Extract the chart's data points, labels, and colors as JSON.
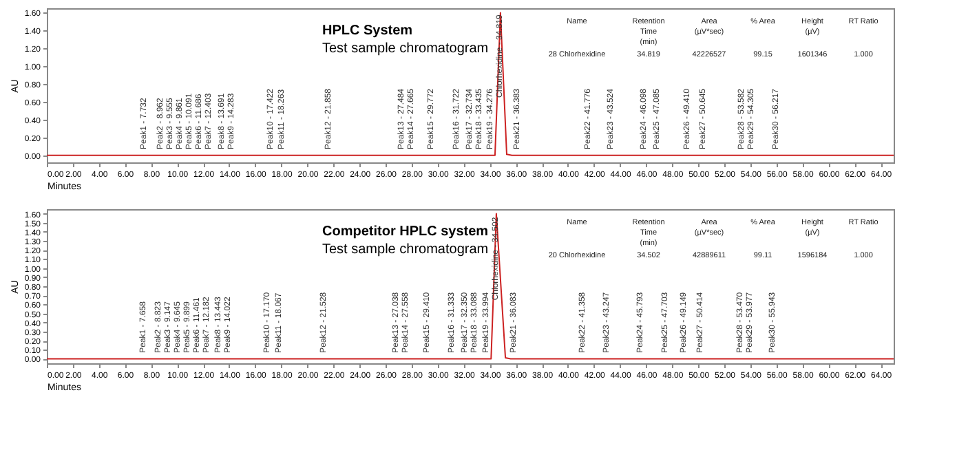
{
  "chart_data": [
    {
      "type": "line",
      "title": "HPLC System",
      "subtitle": "Test sample chromatogram",
      "xlabel": "Minutes",
      "ylabel": "AU",
      "grid": false,
      "series": [
        {
          "color": "#cc2222",
          "x": [
            0,
            34.4,
            34.819,
            35.3,
            35.7,
            65
          ],
          "values": [
            0,
            0,
            1.6,
            0.01,
            0,
            0
          ]
        }
      ],
      "xlim": [
        0,
        65
      ],
      "ylim": [
        -0.08,
        1.65
      ],
      "xticks": [
        {
          "value": 0,
          "label": "0.00"
        },
        {
          "value": 2,
          "label": "2.00"
        },
        {
          "value": 4,
          "label": "4.00"
        },
        {
          "value": 6,
          "label": "6.00"
        },
        {
          "value": 8,
          "label": "8.00"
        },
        {
          "value": 10,
          "label": "10.00"
        },
        {
          "value": 12,
          "label": "12.00"
        },
        {
          "value": 14,
          "label": "14.00"
        },
        {
          "value": 16,
          "label": "16.00"
        },
        {
          "value": 18,
          "label": "18.00"
        },
        {
          "value": 20,
          "label": "20.00"
        },
        {
          "value": 22,
          "label": "22.00"
        },
        {
          "value": 24,
          "label": "24.00"
        },
        {
          "value": 26,
          "label": "26.00"
        },
        {
          "value": 28,
          "label": "28.00"
        },
        {
          "value": 30,
          "label": "30.00"
        },
        {
          "value": 32,
          "label": "32.00"
        },
        {
          "value": 34,
          "label": "34.00"
        },
        {
          "value": 36,
          "label": "36.00"
        },
        {
          "value": 38,
          "label": "38.00"
        },
        {
          "value": 40,
          "label": "40.00"
        },
        {
          "value": 42,
          "label": "42.00"
        },
        {
          "value": 44,
          "label": "44.00"
        },
        {
          "value": 46,
          "label": "46.00"
        },
        {
          "value": 48,
          "label": "48.00"
        },
        {
          "value": 50,
          "label": "50.00"
        },
        {
          "value": 52,
          "label": "52.00"
        },
        {
          "value": 54,
          "label": "54.00"
        },
        {
          "value": 56,
          "label": "56.00"
        },
        {
          "value": 58,
          "label": "58.00"
        },
        {
          "value": 60,
          "label": "60.00"
        },
        {
          "value": 62,
          "label": "62.00"
        },
        {
          "value": 64,
          "label": "64.00"
        }
      ],
      "yticks": [
        {
          "value": 0,
          "label": "0.00"
        },
        {
          "value": 0.2,
          "label": "0.20"
        },
        {
          "value": 0.4,
          "label": "0.40"
        },
        {
          "value": 0.6,
          "label": "0.60"
        },
        {
          "value": 0.8,
          "label": "0.80"
        },
        {
          "value": 1.0,
          "label": "1.00"
        },
        {
          "value": 1.2,
          "label": "1.20"
        },
        {
          "value": 1.4,
          "label": "1.40"
        },
        {
          "value": 1.6,
          "label": "1.60"
        }
      ],
      "annotations": [
        {
          "text": "Peak1 - 7.732",
          "x": 7.732,
          "y": 0.02
        },
        {
          "text": "Peak2 - 8.962",
          "x": 8.962,
          "y": 0.02
        },
        {
          "text": "Peak3 - 9.555",
          "x": 9.555,
          "y": 0.02
        },
        {
          "text": "Peak4 - 9.861",
          "x": 9.861,
          "y": 0.02
        },
        {
          "text": "Peak5 - 10.091",
          "x": 10.091,
          "y": 0.02
        },
        {
          "text": "Peak6 - 11.686",
          "x": 11.686,
          "y": 0.02
        },
        {
          "text": "Peak7 - 12.403",
          "x": 12.403,
          "y": 0.02
        },
        {
          "text": "Peak8 - 13.691",
          "x": 13.691,
          "y": 0.02
        },
        {
          "text": "Peak9 - 14.283",
          "x": 14.283,
          "y": 0.02
        },
        {
          "text": "Peak10 - 17.422",
          "x": 17.422,
          "y": 0.02
        },
        {
          "text": "Peak11 - 18.263",
          "x": 18.263,
          "y": 0.02
        },
        {
          "text": "Peak12 - 21.858",
          "x": 21.858,
          "y": 0.02
        },
        {
          "text": "Peak13 - 27.484",
          "x": 27.484,
          "y": 0.02
        },
        {
          "text": "Peak14 - 27.665",
          "x": 27.665,
          "y": 0.02
        },
        {
          "text": "Peak15 - 29.772",
          "x": 29.772,
          "y": 0.02
        },
        {
          "text": "Peak16 - 31.722",
          "x": 31.722,
          "y": 0.02
        },
        {
          "text": "Peak17 - 32.734",
          "x": 32.734,
          "y": 0.02
        },
        {
          "text": "Peak18 - 33.435",
          "x": 33.435,
          "y": 0.02
        },
        {
          "text": "Peak19 - 34.276",
          "x": 34.276,
          "y": 0.02
        },
        {
          "text": "Chlorhexidine - 34.819",
          "x": 34.819,
          "y": 0.6
        },
        {
          "text": "Peak21 - 36.383",
          "x": 36.383,
          "y": 0.02
        },
        {
          "text": "Peak22 - 41.776",
          "x": 41.776,
          "y": 0.02
        },
        {
          "text": "Peak23 - 43.524",
          "x": 43.524,
          "y": 0.02
        },
        {
          "text": "Peak24 - 46.098",
          "x": 46.098,
          "y": 0.02
        },
        {
          "text": "Peak25 - 47.085",
          "x": 47.085,
          "y": 0.02
        },
        {
          "text": "Peak26 - 49.410",
          "x": 49.41,
          "y": 0.02
        },
        {
          "text": "Peak27 - 50.645",
          "x": 50.645,
          "y": 0.02
        },
        {
          "text": "Peak28 - 53.582",
          "x": 53.582,
          "y": 0.02
        },
        {
          "text": "Peak29 - 54.305",
          "x": 54.305,
          "y": 0.02
        },
        {
          "text": "Peak30 - 56.217",
          "x": 56.217,
          "y": 0.02
        },
        "Name",
        "Retention\nTime\n(min)",
        "Area\n(µV*sec)",
        "% Area",
        "Height\n(µV)",
        "RT Ratio",
        "28 Chlorhexidine",
        "34.819",
        "42226527",
        "99.15",
        "1601346",
        "1.000"
      ]
    },
    {
      "type": "line",
      "title": "Competitor HPLC system",
      "subtitle": "Test sample chromatogram",
      "xlabel": "Minutes",
      "ylabel": "AU",
      "grid": false,
      "series": [
        {
          "color": "#cc2222",
          "x": [
            0,
            34.1,
            34.502,
            35.2,
            35.6,
            65
          ],
          "values": [
            0,
            0,
            1.6,
            0.01,
            0,
            0
          ]
        }
      ],
      "xlim": [
        0,
        65
      ],
      "ylim": [
        -0.05,
        1.65
      ],
      "xticks": [
        {
          "value": 0,
          "label": "0.00"
        },
        {
          "value": 2,
          "label": "2.00"
        },
        {
          "value": 4,
          "label": "4.00"
        },
        {
          "value": 6,
          "label": "6.00"
        },
        {
          "value": 8,
          "label": "8.00"
        },
        {
          "value": 10,
          "label": "10.00"
        },
        {
          "value": 12,
          "label": "12.00"
        },
        {
          "value": 14,
          "label": "14.00"
        },
        {
          "value": 16,
          "label": "16.00"
        },
        {
          "value": 18,
          "label": "18.00"
        },
        {
          "value": 20,
          "label": "20.00"
        },
        {
          "value": 22,
          "label": "22.00"
        },
        {
          "value": 24,
          "label": "24.00"
        },
        {
          "value": 26,
          "label": "26.00"
        },
        {
          "value": 28,
          "label": "28.00"
        },
        {
          "value": 30,
          "label": "30.00"
        },
        {
          "value": 32,
          "label": "32.00"
        },
        {
          "value": 34,
          "label": "34.00"
        },
        {
          "value": 36,
          "label": "36.00"
        },
        {
          "value": 38,
          "label": "38.00"
        },
        {
          "value": 40,
          "label": "40.00"
        },
        {
          "value": 42,
          "label": "42.00"
        },
        {
          "value": 44,
          "label": "44.00"
        },
        {
          "value": 46,
          "label": "46.00"
        },
        {
          "value": 48,
          "label": "48.00"
        },
        {
          "value": 50,
          "label": "50.00"
        },
        {
          "value": 52,
          "label": "52.00"
        },
        {
          "value": 54,
          "label": "54.00"
        },
        {
          "value": 56,
          "label": "56.00"
        },
        {
          "value": 58,
          "label": "58.00"
        },
        {
          "value": 60,
          "label": "60.00"
        },
        {
          "value": 62,
          "label": "62.00"
        },
        {
          "value": 64,
          "label": "64.00"
        }
      ],
      "yticks": [
        {
          "value": 0,
          "label": "0.00"
        },
        {
          "value": 0.1,
          "label": "0.10"
        },
        {
          "value": 0.2,
          "label": "0.20"
        },
        {
          "value": 0.3,
          "label": "0.30"
        },
        {
          "value": 0.4,
          "label": "0.40"
        },
        {
          "value": 0.5,
          "label": "0.50"
        },
        {
          "value": 0.6,
          "label": "0.60"
        },
        {
          "value": 0.7,
          "label": "0.70"
        },
        {
          "value": 0.8,
          "label": "0.80"
        },
        {
          "value": 0.9,
          "label": "0.90"
        },
        {
          "value": 1.0,
          "label": "1.00"
        },
        {
          "value": 1.1,
          "label": "1.10"
        },
        {
          "value": 1.2,
          "label": "1.20"
        },
        {
          "value": 1.3,
          "label": "1.30"
        },
        {
          "value": 1.4,
          "label": "1.40"
        },
        {
          "value": 1.5,
          "label": "1.50"
        },
        {
          "value": 1.6,
          "label": "1.60"
        }
      ],
      "annotations": [
        {
          "text": "Peak1 - 7.658",
          "x": 7.658,
          "y": 0.02
        },
        {
          "text": "Peak2 - 8.823",
          "x": 8.823,
          "y": 0.02
        },
        {
          "text": "Peak3 - 9.147",
          "x": 9.147,
          "y": 0.02
        },
        {
          "text": "Peak4 - 9.645",
          "x": 9.645,
          "y": 0.02
        },
        {
          "text": "Peak5 - 9.899",
          "x": 9.899,
          "y": 0.02
        },
        {
          "text": "Peak6 - 11.461",
          "x": 11.461,
          "y": 0.02
        },
        {
          "text": "Peak7 - 12.182",
          "x": 12.182,
          "y": 0.02
        },
        {
          "text": "Peak8 - 13.443",
          "x": 13.443,
          "y": 0.02
        },
        {
          "text": "Peak9 - 14.022",
          "x": 14.022,
          "y": 0.02
        },
        {
          "text": "Peak10 - 17.170",
          "x": 17.17,
          "y": 0.02
        },
        {
          "text": "Peak11 - 18.067",
          "x": 18.067,
          "y": 0.02
        },
        {
          "text": "Peak12 - 21.528",
          "x": 21.528,
          "y": 0.02
        },
        {
          "text": "Peak13 - 27.038",
          "x": 27.038,
          "y": 0.02
        },
        {
          "text": "Peak14 - 27.558",
          "x": 27.558,
          "y": 0.02
        },
        {
          "text": "Peak15 - 29.410",
          "x": 29.41,
          "y": 0.02
        },
        {
          "text": "Peak16 - 31.333",
          "x": 31.333,
          "y": 0.02
        },
        {
          "text": "Peak17 - 32.350",
          "x": 32.35,
          "y": 0.02
        },
        {
          "text": "Peak18 - 33.088",
          "x": 33.088,
          "y": 0.02
        },
        {
          "text": "Peak19 - 33.994",
          "x": 33.994,
          "y": 0.02
        },
        {
          "text": "Chlorhexidine - 34.502",
          "x": 34.502,
          "y": 0.6
        },
        {
          "text": "Peak21 - 36.083",
          "x": 36.083,
          "y": 0.02
        },
        {
          "text": "Peak22 - 41.358",
          "x": 41.358,
          "y": 0.02
        },
        {
          "text": "Peak23 - 43.247",
          "x": 43.247,
          "y": 0.02
        },
        {
          "text": "Peak24 - 45.793",
          "x": 45.793,
          "y": 0.02
        },
        {
          "text": "Peak25 - 47.703",
          "x": 47.703,
          "y": 0.02
        },
        {
          "text": "Peak26 - 49.149",
          "x": 49.149,
          "y": 0.02
        },
        {
          "text": "Peak27 - 50.414",
          "x": 50.414,
          "y": 0.02
        },
        {
          "text": "Peak28 - 53.470",
          "x": 53.47,
          "y": 0.02
        },
        {
          "text": "Peak29 - 53.977",
          "x": 53.977,
          "y": 0.02
        },
        {
          "text": "Peak30 - 55.943",
          "x": 55.943,
          "y": 0.02
        },
        "Name",
        "Retention\nTime\n(min)",
        "Area\n(µV*sec)",
        "% Area",
        "Height\n(µV)",
        "RT Ratio",
        "20 Chlorhexidine",
        "34.502",
        "42889611",
        "99.11",
        "1596184",
        "1.000"
      ]
    }
  ]
}
